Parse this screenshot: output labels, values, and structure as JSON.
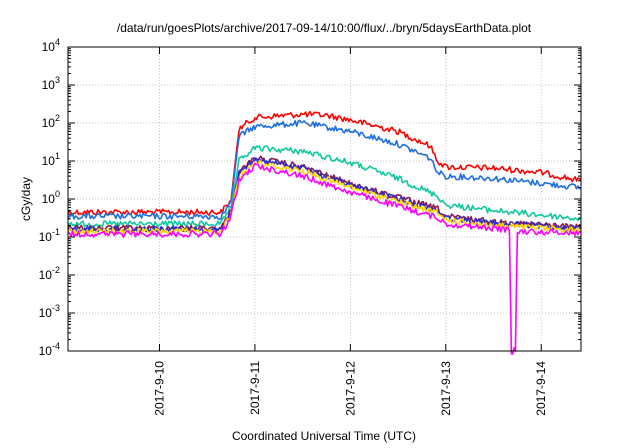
{
  "chart_data": {
    "type": "line",
    "title": "/data/run/goesPlots/archive/2017-09-14/10:00/flux/../bryn/5daysEarthData.plot",
    "xlabel": "Coordinated Universal Time (UTC)",
    "ylabel": "cGy/day",
    "yscale": "log",
    "ylim": [
      0.0001,
      10000
    ],
    "xlim": [
      "2017-09-09T01:00",
      "2017-09-14T10:00"
    ],
    "grid": true,
    "x_ticks": [
      "2017-9-10",
      "2017-9-11",
      "2017-9-12",
      "2017-9-13",
      "2017-9-14"
    ],
    "y_ticks": [
      {
        "base": "10",
        "exp": "-4"
      },
      {
        "base": "10",
        "exp": "-3"
      },
      {
        "base": "10",
        "exp": "-2"
      },
      {
        "base": "10",
        "exp": "-1"
      },
      {
        "base": "10",
        "exp": "0"
      },
      {
        "base": "10",
        "exp": "1"
      },
      {
        "base": "10",
        "exp": "2"
      },
      {
        "base": "10",
        "exp": "3"
      },
      {
        "base": "10",
        "exp": "4"
      }
    ],
    "series": [
      {
        "color": "#ff0000",
        "points": [
          [
            "2017-09-09T01:00",
            0.45
          ],
          [
            "2017-09-10T15:30",
            0.45
          ],
          [
            "2017-09-10T18:00",
            0.9
          ],
          [
            "2017-09-10T20:00",
            70
          ],
          [
            "2017-09-11T00:00",
            140
          ],
          [
            "2017-09-11T12:00",
            170
          ],
          [
            "2017-09-11T18:00",
            160
          ],
          [
            "2017-09-12T00:00",
            120
          ],
          [
            "2017-09-12T12:00",
            60
          ],
          [
            "2017-09-12T20:00",
            25
          ],
          [
            "2017-09-12T22:00",
            10
          ],
          [
            "2017-09-13T00:00",
            7
          ],
          [
            "2017-09-13T12:00",
            6.5
          ],
          [
            "2017-09-14T00:00",
            5
          ],
          [
            "2017-09-14T10:00",
            3
          ]
        ]
      },
      {
        "color": "#1e6fe0",
        "points": [
          [
            "2017-09-09T01:00",
            0.35
          ],
          [
            "2017-09-10T15:30",
            0.35
          ],
          [
            "2017-09-10T18:00",
            0.8
          ],
          [
            "2017-09-10T20:00",
            45
          ],
          [
            "2017-09-11T00:00",
            80
          ],
          [
            "2017-09-11T12:00",
            100
          ],
          [
            "2017-09-12T00:00",
            60
          ],
          [
            "2017-09-12T12:00",
            28
          ],
          [
            "2017-09-12T20:00",
            12
          ],
          [
            "2017-09-12T22:00",
            5
          ],
          [
            "2017-09-13T00:00",
            4
          ],
          [
            "2017-09-13T12:00",
            3.5
          ],
          [
            "2017-09-13T18:00",
            3
          ],
          [
            "2017-09-14T10:00",
            2
          ]
        ]
      },
      {
        "color": "#10c8a0",
        "points": [
          [
            "2017-09-09T01:00",
            0.22
          ],
          [
            "2017-09-10T15:30",
            0.22
          ],
          [
            "2017-09-10T18:00",
            0.6
          ],
          [
            "2017-09-10T20:00",
            10
          ],
          [
            "2017-09-11T00:00",
            22
          ],
          [
            "2017-09-11T12:00",
            18
          ],
          [
            "2017-09-12T00:00",
            9
          ],
          [
            "2017-09-12T12:00",
            3.5
          ],
          [
            "2017-09-12T22:00",
            1.2
          ],
          [
            "2017-09-13T00:00",
            0.7
          ],
          [
            "2017-09-13T12:00",
            0.5
          ],
          [
            "2017-09-14T10:00",
            0.3
          ]
        ]
      },
      {
        "color": "#8a1850",
        "points": [
          [
            "2017-09-09T01:00",
            0.17
          ],
          [
            "2017-09-10T15:30",
            0.17
          ],
          [
            "2017-09-10T18:00",
            0.5
          ],
          [
            "2017-09-10T20:00",
            5
          ],
          [
            "2017-09-11T00:00",
            12
          ],
          [
            "2017-09-11T12:00",
            7
          ],
          [
            "2017-09-12T00:00",
            2.5
          ],
          [
            "2017-09-12T12:00",
            1.1
          ],
          [
            "2017-09-12T22:00",
            0.55
          ],
          [
            "2017-09-13T00:00",
            0.35
          ],
          [
            "2017-09-13T12:00",
            0.25
          ],
          [
            "2017-09-14T10:00",
            0.18
          ]
        ]
      },
      {
        "color": "#3030c8",
        "points": [
          [
            "2017-09-09T01:00",
            0.16
          ],
          [
            "2017-09-10T15:30",
            0.16
          ],
          [
            "2017-09-10T18:00",
            0.45
          ],
          [
            "2017-09-10T20:00",
            4.5
          ],
          [
            "2017-09-11T00:00",
            11
          ],
          [
            "2017-09-11T12:00",
            6.5
          ],
          [
            "2017-09-12T00:00",
            2.3
          ],
          [
            "2017-09-12T12:00",
            1
          ],
          [
            "2017-09-12T22:00",
            0.5
          ],
          [
            "2017-09-13T00:00",
            0.32
          ],
          [
            "2017-09-13T12:00",
            0.23
          ],
          [
            "2017-09-14T10:00",
            0.17
          ]
        ]
      },
      {
        "color": "#ffd800",
        "points": [
          [
            "2017-09-09T01:00",
            0.14
          ],
          [
            "2017-09-10T15:30",
            0.14
          ],
          [
            "2017-09-10T18:00",
            0.4
          ],
          [
            "2017-09-10T20:00",
            4
          ],
          [
            "2017-09-11T00:00",
            9
          ],
          [
            "2017-09-11T12:00",
            5.5
          ],
          [
            "2017-09-12T00:00",
            2
          ],
          [
            "2017-09-12T12:00",
            0.85
          ],
          [
            "2017-09-12T22:00",
            0.42
          ],
          [
            "2017-09-13T00:00",
            0.28
          ],
          [
            "2017-09-13T12:00",
            0.2
          ],
          [
            "2017-09-14T10:00",
            0.15
          ]
        ]
      },
      {
        "color": "#ff00ff",
        "points": [
          [
            "2017-09-09T01:00",
            0.12
          ],
          [
            "2017-09-10T15:30",
            0.12
          ],
          [
            "2017-09-10T18:00",
            0.35
          ],
          [
            "2017-09-10T20:00",
            3
          ],
          [
            "2017-09-11T00:00",
            7.5
          ],
          [
            "2017-09-11T12:00",
            4
          ],
          [
            "2017-09-12T00:00",
            1.5
          ],
          [
            "2017-09-12T12:00",
            0.65
          ],
          [
            "2017-09-12T22:00",
            0.32
          ],
          [
            "2017-09-13T00:00",
            0.22
          ],
          [
            "2017-09-13T12:00",
            0.17
          ],
          [
            "2017-09-13T16:00",
            0.15
          ],
          [
            "2017-09-13T16:30",
            0.0001
          ],
          [
            "2017-09-13T17:30",
            0.0001
          ],
          [
            "2017-09-13T18:00",
            0.14
          ],
          [
            "2017-09-14T10:00",
            0.13
          ]
        ]
      }
    ]
  }
}
